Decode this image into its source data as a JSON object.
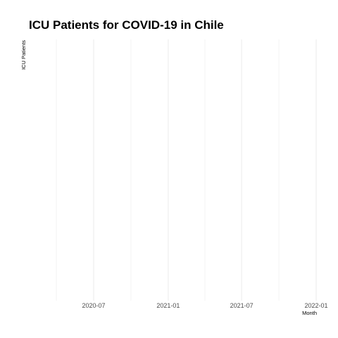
{
  "chart_data": {
    "type": "line",
    "title": "ICU Patients for COVID-19 in Chile",
    "xlabel": "Month",
    "ylabel": "ICU Patients",
    "x_ticks": [
      "2020-07",
      "2021-01",
      "2021-07",
      "2022-01"
    ],
    "x_tick_dates": [
      "2020-07-01",
      "2021-01-01",
      "2021-07-01",
      "2022-01-01"
    ],
    "xlim": [
      "2020-04-01",
      "2022-01-01"
    ],
    "series": [],
    "grid": true,
    "colors": {
      "gridline": "#ebebeb",
      "tick_text": "#4d4d4d",
      "title": "#000000"
    }
  }
}
